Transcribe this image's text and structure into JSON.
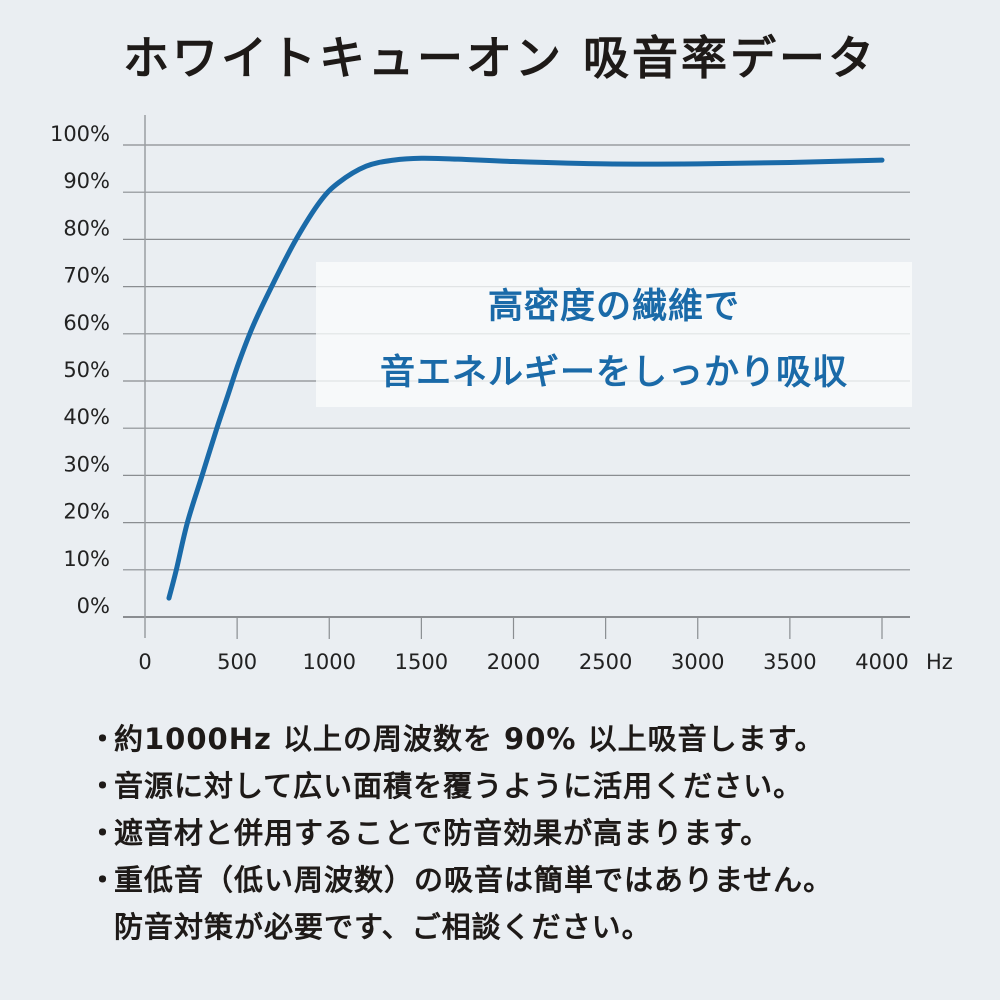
{
  "header": {
    "title": "ホワイトキューオン 吸音率データ"
  },
  "callout": {
    "line1": "高密度の繊維で",
    "line2": "音エネルギーをしっかり吸収"
  },
  "notes": {
    "bullet": "・",
    "items": [
      "約1000Hz 以上の周波数を 90% 以上吸音します。",
      "音源に対して広い面積を覆うように活用ください。",
      "遮音材と併用することで防音効果が高まります。",
      "重低音（低い周波数）の吸音は簡単ではありません。"
    ],
    "continuation": "防音対策が必要です、ご相談ください。"
  },
  "colors": {
    "background": "#eaeef2",
    "line": "#1a6aa8",
    "grid": "#8a8d91",
    "text": "#1e1a18"
  },
  "chart_data": {
    "type": "line",
    "title": "ホワイトキューオン 吸音率データ",
    "xlabel": "Hz",
    "ylabel": "",
    "xlim": [
      0,
      4000
    ],
    "ylim": [
      0,
      100
    ],
    "x_ticks": [
      0,
      500,
      1000,
      1500,
      2000,
      2500,
      3000,
      3500,
      4000
    ],
    "x_tick_labels": [
      "0",
      "500",
      "1000",
      "1500",
      "2000",
      "2500",
      "3000",
      "3500",
      "4000"
    ],
    "y_ticks": [
      0,
      10,
      20,
      30,
      40,
      50,
      60,
      70,
      80,
      90,
      100
    ],
    "y_tick_labels": [
      "0%",
      "10%",
      "20%",
      "30%",
      "40%",
      "50%",
      "60%",
      "70%",
      "80%",
      "90%",
      "100%"
    ],
    "grid": {
      "horizontal": true,
      "vertical": false
    },
    "legend": null,
    "series": [
      {
        "name": "吸音率",
        "color": "#1a6aa8",
        "x": [
          130,
          170,
          230,
          310,
          390,
          450,
          510,
          590,
          700,
          820,
          950,
          1050,
          1200,
          1350,
          1500,
          1700,
          2000,
          2500,
          3000,
          3500,
          4000
        ],
        "y": [
          4,
          10,
          20,
          30,
          40,
          47,
          54,
          62,
          71,
          80,
          88,
          92,
          95.5,
          96.8,
          97.2,
          97.0,
          96.5,
          96.0,
          96.0,
          96.3,
          96.8
        ]
      }
    ],
    "annotations": [
      "高密度の繊維で",
      "音エネルギーをしっかり吸収"
    ]
  }
}
